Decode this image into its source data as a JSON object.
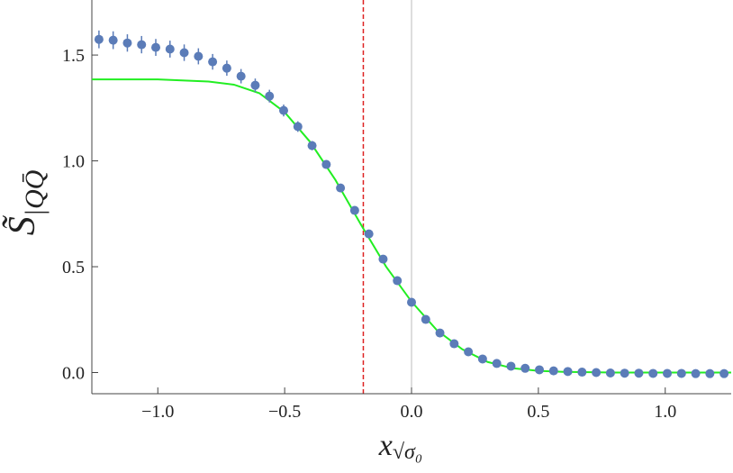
{
  "chart_data": {
    "type": "scatter",
    "y_label": "S̃",
    "y_label_sub": "|QQ̄",
    "x_label": "x",
    "x_label_sub": "√σ₀",
    "xlim": [
      -1.26,
      1.26
    ],
    "ylim": [
      -0.1,
      1.76
    ],
    "xticks": [
      {
        "value": -1.0,
        "label": "−1.0"
      },
      {
        "value": -0.5,
        "label": "−0.5"
      },
      {
        "value": 0.0,
        "label": "0.0"
      },
      {
        "value": 0.5,
        "label": "0.5"
      },
      {
        "value": 1.0,
        "label": "1.0"
      }
    ],
    "yticks": [
      {
        "value": 0.0,
        "label": "0.0"
      },
      {
        "value": 0.5,
        "label": "0.5"
      },
      {
        "value": 1.0,
        "label": "1.0"
      },
      {
        "value": 1.5,
        "label": "1.5"
      }
    ],
    "series": [
      {
        "type": "scatter",
        "color": "#5b7cb8",
        "x": [
          -1.232,
          -1.176,
          -1.12,
          -1.064,
          -1.008,
          -0.952,
          -0.896,
          -0.84,
          -0.784,
          -0.728,
          -0.672,
          -0.616,
          -0.56,
          -0.504,
          -0.448,
          -0.392,
          -0.336,
          -0.28,
          -0.224,
          -0.168,
          -0.112,
          -0.056,
          0.0,
          0.056,
          0.112,
          0.168,
          0.224,
          0.28,
          0.336,
          0.392,
          0.448,
          0.504,
          0.56,
          0.616,
          0.672,
          0.728,
          0.784,
          0.84,
          0.896,
          0.952,
          1.008,
          1.064,
          1.12,
          1.176,
          1.232
        ],
        "values": [
          1.574,
          1.57,
          1.557,
          1.549,
          1.536,
          1.528,
          1.511,
          1.494,
          1.468,
          1.438,
          1.4,
          1.357,
          1.306,
          1.238,
          1.162,
          1.072,
          0.983,
          0.872,
          0.766,
          0.655,
          0.536,
          0.434,
          0.332,
          0.251,
          0.187,
          0.136,
          0.098,
          0.064,
          0.043,
          0.03,
          0.02,
          0.013,
          0.008,
          0.005,
          0.002,
          0.0,
          -0.002,
          -0.003,
          -0.003,
          -0.004,
          -0.004,
          -0.004,
          -0.005,
          -0.005,
          -0.005
        ],
        "errors": [
          0.042,
          0.042,
          0.041,
          0.041,
          0.04,
          0.04,
          0.039,
          0.038,
          0.037,
          0.036,
          0.034,
          0.032,
          0.03,
          0.028,
          0.025,
          0.022,
          0.02,
          0.018,
          0.016,
          0.014,
          0.012,
          0.011,
          0.01,
          0.009,
          0.008,
          0.008,
          0.007,
          0.007,
          0.006,
          0.006,
          0.006,
          0.006,
          0.006,
          0.006,
          0.006,
          0.006,
          0.006,
          0.006,
          0.006,
          0.006,
          0.006,
          0.006,
          0.006,
          0.006,
          0.006
        ]
      },
      {
        "type": "line",
        "color": "#22ee22",
        "x": [
          -1.26,
          -1.0,
          -0.8,
          -0.7,
          -0.6,
          -0.5,
          -0.4,
          -0.3,
          -0.2,
          -0.1,
          0.0,
          0.1,
          0.2,
          0.3,
          0.4,
          0.5,
          0.6,
          0.8,
          1.26
        ],
        "values": [
          1.385,
          1.385,
          1.375,
          1.36,
          1.32,
          1.23,
          1.09,
          0.91,
          0.7,
          0.5,
          0.335,
          0.2,
          0.11,
          0.05,
          0.02,
          0.008,
          0.003,
          0.0,
          0.0
        ]
      }
    ],
    "reference_lines": [
      {
        "x": -0.19,
        "color": "#dd2222",
        "dashed": true
      },
      {
        "x": 0.0,
        "color": "#bbbbbb",
        "dashed": false
      }
    ]
  }
}
